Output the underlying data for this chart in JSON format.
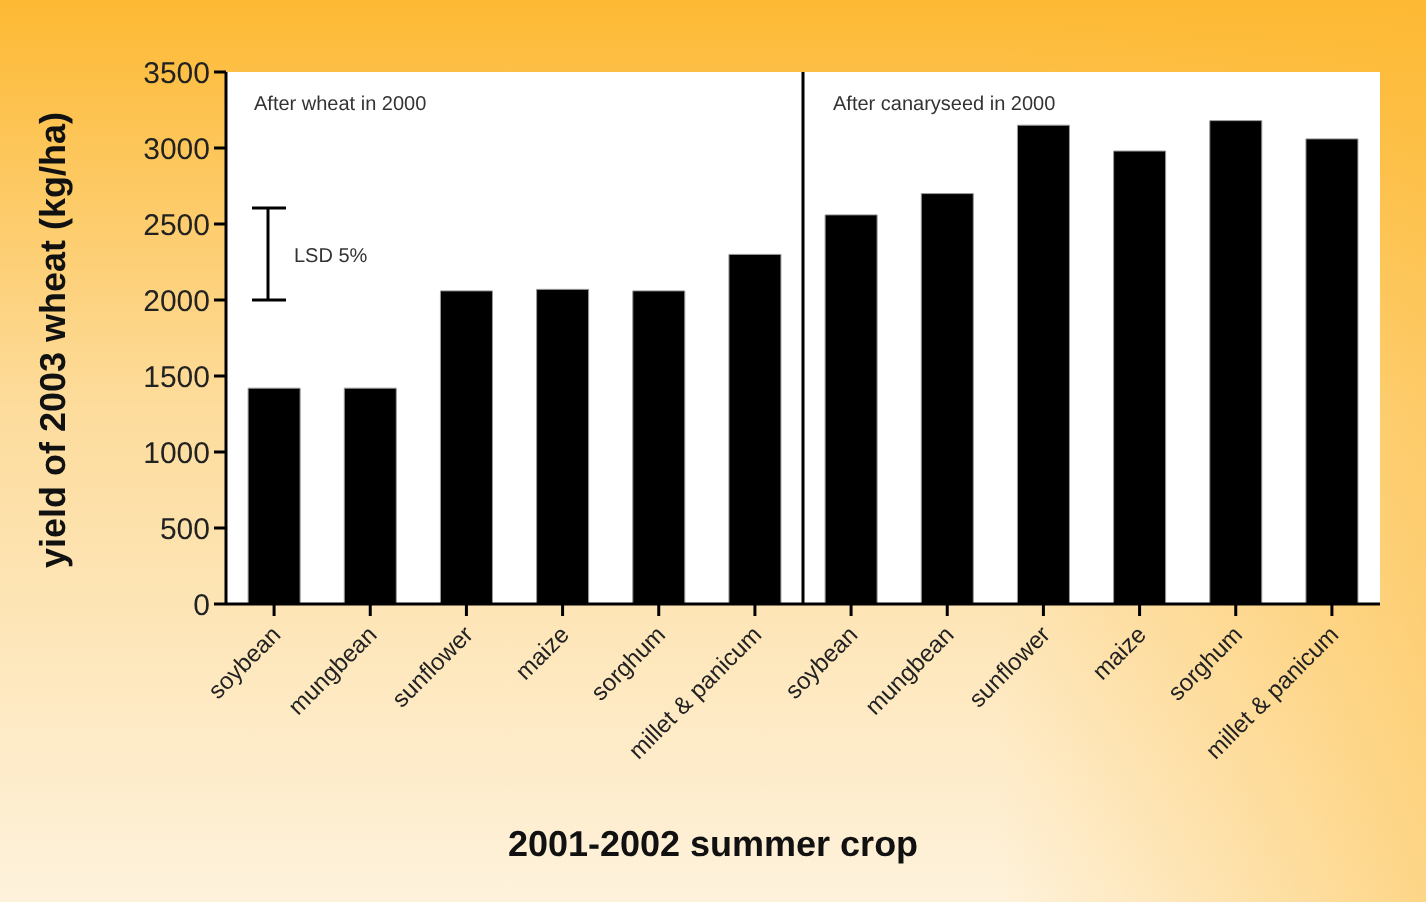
{
  "chart_data": {
    "type": "bar",
    "xlabel": "2001-2002 summer crop",
    "ylabel": "yield of 2003 wheat (kg/ha)",
    "categories": [
      "soybean",
      "mungbean",
      "sunflower",
      "maize",
      "sorghum",
      "millet & panicum",
      "soybean",
      "mungbean",
      "sunflower",
      "maize",
      "sorghum",
      "millet & panicum"
    ],
    "values": [
      1420,
      1420,
      2060,
      2070,
      2060,
      2300,
      2560,
      2700,
      3150,
      2980,
      3180,
      3060
    ],
    "color": "#000000",
    "ylim": [
      0,
      3500
    ],
    "yticks": [
      0,
      500,
      1000,
      1500,
      2000,
      2500,
      3000,
      3500
    ],
    "annotations": [
      "After wheat in 2000",
      "After canaryseed in 2000",
      "LSD 5%"
    ]
  }
}
